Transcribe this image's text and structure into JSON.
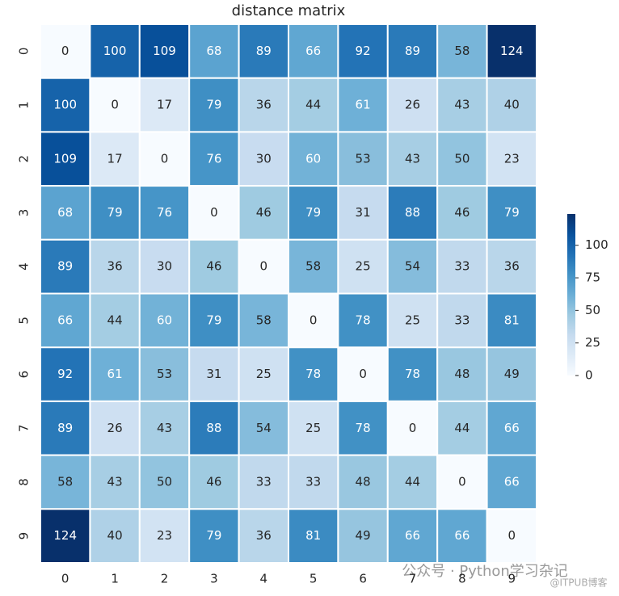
{
  "chart_data": {
    "type": "heatmap",
    "title": "distance matrix",
    "x": [
      "0",
      "1",
      "2",
      "3",
      "4",
      "5",
      "6",
      "7",
      "8",
      "9"
    ],
    "y": [
      "0",
      "1",
      "2",
      "3",
      "4",
      "5",
      "6",
      "7",
      "8",
      "9"
    ],
    "values": [
      [
        0,
        100,
        109,
        68,
        89,
        66,
        92,
        89,
        58,
        124
      ],
      [
        100,
        0,
        17,
        79,
        36,
        44,
        61,
        26,
        43,
        40
      ],
      [
        109,
        17,
        0,
        76,
        30,
        60,
        53,
        43,
        50,
        23
      ],
      [
        68,
        79,
        76,
        0,
        46,
        79,
        31,
        88,
        46,
        79
      ],
      [
        89,
        36,
        30,
        46,
        0,
        58,
        25,
        54,
        33,
        36
      ],
      [
        66,
        44,
        60,
        79,
        58,
        0,
        78,
        25,
        33,
        81
      ],
      [
        92,
        61,
        53,
        31,
        25,
        78,
        0,
        78,
        48,
        49
      ],
      [
        89,
        26,
        43,
        88,
        54,
        25,
        78,
        0,
        44,
        66
      ],
      [
        58,
        43,
        50,
        46,
        33,
        33,
        48,
        44,
        0,
        66
      ],
      [
        124,
        40,
        23,
        79,
        36,
        81,
        49,
        66,
        66,
        0
      ]
    ],
    "colorscale": [
      "#f7fbff",
      "#deebf7",
      "#c6dbef",
      "#9ecae1",
      "#6baed6",
      "#4292c6",
      "#2171b5",
      "#08519c",
      "#08306b"
    ],
    "clim": [
      0,
      124
    ],
    "colorbar_ticks": [
      0,
      25,
      50,
      75,
      100
    ],
    "annotations": [
      "公众号 · Python学习杂记",
      "@ITPUB博客"
    ]
  }
}
